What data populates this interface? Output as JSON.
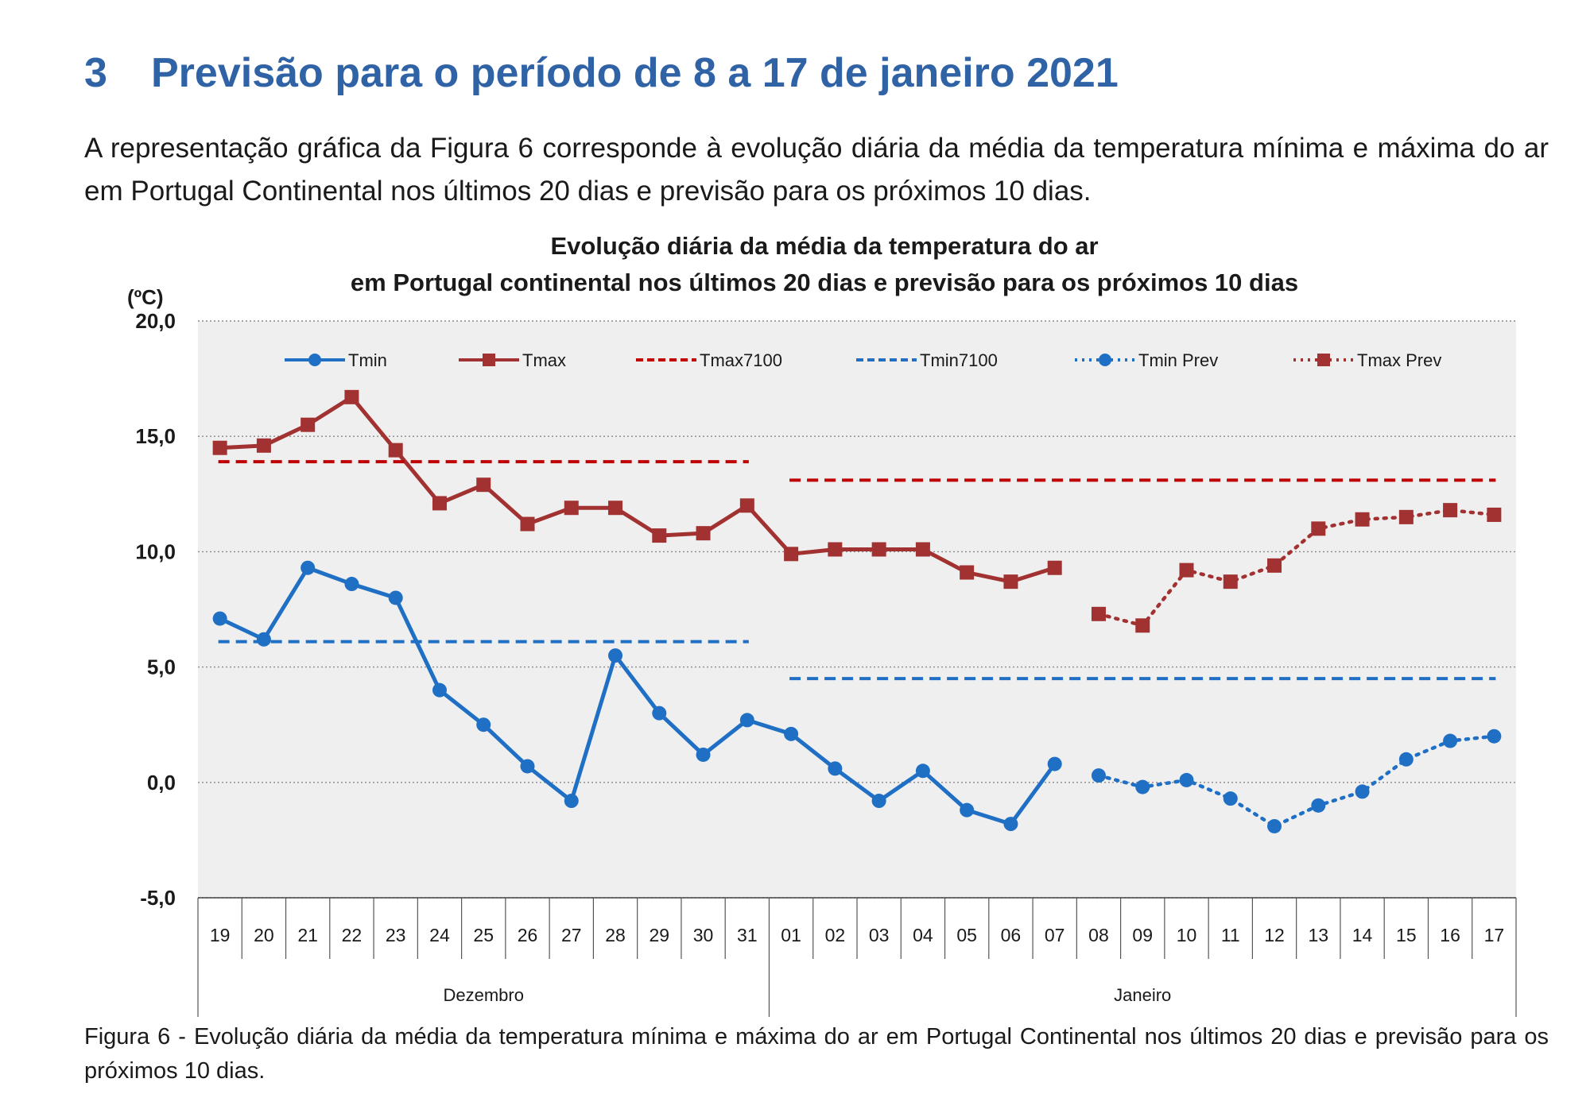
{
  "heading": {
    "number": "3",
    "title": "Previsão para o período de 8 a 17 de janeiro 2021"
  },
  "intro": "A representação gráfica da Figura 6 corresponde à evolução diária da média da temperatura mínima e máxima do ar em Portugal Continental nos últimos 20 dias e previsão para os próximos 10 dias.",
  "caption": "Figura 6 - Evolução diária da média da temperatura mínima e máxima do ar em Portugal Continental nos últimos 20 dias e previsão para os próximos 10 dias.",
  "chart_data": {
    "type": "line",
    "title_line1": "Evolução diária da média da temperatura do ar",
    "title_line2": "em Portugal continental nos últimos 20 dias e previsão para os próximos 10 dias",
    "ylabel": "(ºC)",
    "ylim": [
      -5,
      20
    ],
    "yticks": [
      20,
      15,
      10,
      5,
      0,
      -5
    ],
    "ytick_labels": [
      "20,0",
      "15,0",
      "10,0",
      "5,0",
      "0,0",
      "-5,0"
    ],
    "grid": true,
    "legend_position": "top",
    "categories": [
      "19",
      "20",
      "21",
      "22",
      "23",
      "24",
      "25",
      "26",
      "27",
      "28",
      "29",
      "30",
      "31",
      "01",
      "02",
      "03",
      "04",
      "05",
      "06",
      "07",
      "08",
      "09",
      "10",
      "11",
      "12",
      "13",
      "14",
      "15",
      "16",
      "17"
    ],
    "month_groups": [
      {
        "label": "Dezembro",
        "count": 13
      },
      {
        "label": "Janeiro",
        "count": 17
      }
    ],
    "series": [
      {
        "name": "Tmin",
        "color": "#1f6fc5",
        "style": "solid",
        "marker": "circle",
        "values": [
          7.1,
          6.2,
          9.3,
          8.6,
          8.0,
          4.0,
          2.5,
          0.7,
          -0.8,
          5.5,
          3.0,
          1.2,
          2.7,
          2.1,
          0.6,
          -0.8,
          0.5,
          -1.2,
          -1.8,
          0.8,
          null,
          null,
          null,
          null,
          null,
          null,
          null,
          null,
          null,
          null
        ]
      },
      {
        "name": "Tmax",
        "color": "#a23232",
        "style": "solid",
        "marker": "square",
        "values": [
          14.5,
          14.6,
          15.5,
          16.7,
          14.4,
          12.1,
          12.9,
          11.2,
          11.9,
          11.9,
          10.7,
          10.8,
          12.0,
          9.9,
          10.1,
          10.1,
          10.1,
          9.1,
          8.7,
          9.3,
          null,
          null,
          null,
          null,
          null,
          null,
          null,
          null,
          null,
          null
        ]
      },
      {
        "name": "Tmax7100",
        "color": "#c00000",
        "style": "dashed",
        "marker": "none",
        "segments": [
          {
            "from": 0,
            "to": 12,
            "value": 13.9
          },
          {
            "from": 13,
            "to": 29,
            "value": 13.1
          }
        ]
      },
      {
        "name": "Tmin7100",
        "color": "#1f6fc5",
        "style": "dashed",
        "marker": "none",
        "segments": [
          {
            "from": 0,
            "to": 12,
            "value": 6.1
          },
          {
            "from": 13,
            "to": 29,
            "value": 4.5
          }
        ]
      },
      {
        "name": "Tmin Prev",
        "color": "#1f6fc5",
        "style": "dotted",
        "marker": "circle",
        "values": [
          null,
          null,
          null,
          null,
          null,
          null,
          null,
          null,
          null,
          null,
          null,
          null,
          null,
          null,
          null,
          null,
          null,
          null,
          null,
          null,
          0.3,
          -0.2,
          0.1,
          -0.7,
          -1.9,
          -1.0,
          -0.4,
          1.0,
          1.8,
          2.0
        ]
      },
      {
        "name": "Tmax Prev",
        "color": "#a23232",
        "style": "dotted",
        "marker": "square",
        "values": [
          null,
          null,
          null,
          null,
          null,
          null,
          null,
          null,
          null,
          null,
          null,
          null,
          null,
          null,
          null,
          null,
          null,
          null,
          null,
          null,
          7.3,
          6.8,
          9.2,
          8.7,
          9.4,
          11.0,
          11.4,
          11.5,
          11.8,
          11.6
        ]
      }
    ]
  }
}
